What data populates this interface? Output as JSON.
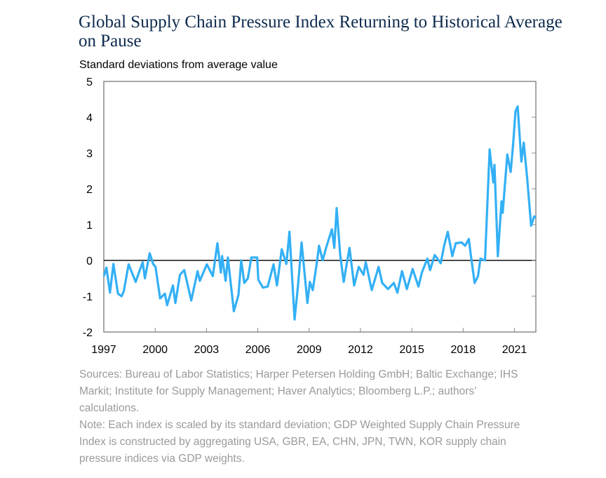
{
  "chart_data": {
    "type": "line",
    "title": "Global Supply Chain Pressure Index Returning to Historical Average on Pause",
    "ylabel": "Standard deviations from average value",
    "xlabel": "",
    "xlim": [
      1997,
      2022.25
    ],
    "ylim": [
      -2,
      5
    ],
    "x_ticks": [
      1997,
      2000,
      2003,
      2006,
      2009,
      2012,
      2015,
      2018,
      2021
    ],
    "x_tick_labels": [
      "1997",
      "2000",
      "2003",
      "2006",
      "2009",
      "2012",
      "2015",
      "2018",
      "2021"
    ],
    "y_ticks": [
      -2,
      -1,
      0,
      1,
      2,
      3,
      4,
      5
    ],
    "y_tick_labels": [
      "-2",
      "-1",
      "0",
      "1",
      "2",
      "3",
      "4",
      "5"
    ],
    "grid": false,
    "zero_line": true,
    "series": [
      {
        "name": "Global Supply Chain Pressure Index",
        "color": "#33b0f5",
        "points": [
          [
            1997.01,
            -0.44
          ],
          [
            1997.15,
            -0.2
          ],
          [
            1997.36,
            -0.9
          ],
          [
            1997.56,
            -0.1
          ],
          [
            1997.83,
            -0.93
          ],
          [
            1998.04,
            -1.0
          ],
          [
            1998.17,
            -0.86
          ],
          [
            1998.45,
            -0.11
          ],
          [
            1998.86,
            -0.6
          ],
          [
            1999.27,
            -0.05
          ],
          [
            1999.4,
            -0.5
          ],
          [
            1999.68,
            0.2
          ],
          [
            1999.88,
            -0.1
          ],
          [
            2000.02,
            -0.18
          ],
          [
            2000.29,
            -1.06
          ],
          [
            2000.57,
            -0.93
          ],
          [
            2000.7,
            -1.25
          ],
          [
            2001.04,
            -0.7
          ],
          [
            2001.18,
            -1.19
          ],
          [
            2001.45,
            -0.4
          ],
          [
            2001.7,
            -0.27
          ],
          [
            2002.11,
            -1.12
          ],
          [
            2002.48,
            -0.3
          ],
          [
            2002.61,
            -0.57
          ],
          [
            2003.02,
            -0.11
          ],
          [
            2003.37,
            -0.44
          ],
          [
            2003.64,
            0.48
          ],
          [
            2003.84,
            -0.34
          ],
          [
            2003.91,
            0.12
          ],
          [
            2004.12,
            -0.57
          ],
          [
            2004.25,
            0.08
          ],
          [
            2004.6,
            -1.42
          ],
          [
            2004.87,
            -0.96
          ],
          [
            2005.03,
            0.0
          ],
          [
            2005.21,
            -0.63
          ],
          [
            2005.42,
            -0.5
          ],
          [
            2005.62,
            0.08
          ],
          [
            2005.96,
            0.08
          ],
          [
            2006.03,
            -0.54
          ],
          [
            2006.3,
            -0.76
          ],
          [
            2006.58,
            -0.73
          ],
          [
            2006.92,
            -0.11
          ],
          [
            2007.12,
            -0.7
          ],
          [
            2007.4,
            0.31
          ],
          [
            2007.67,
            -0.1
          ],
          [
            2007.85,
            0.8
          ],
          [
            2008.15,
            -1.65
          ],
          [
            2008.35,
            -0.7
          ],
          [
            2008.56,
            0.5
          ],
          [
            2008.9,
            -1.19
          ],
          [
            2009.04,
            -0.6
          ],
          [
            2009.21,
            -0.83
          ],
          [
            2009.44,
            -0.1
          ],
          [
            2009.58,
            0.41
          ],
          [
            2009.79,
            0.0
          ],
          [
            2009.99,
            0.35
          ],
          [
            2010.33,
            0.87
          ],
          [
            2010.47,
            0.35
          ],
          [
            2010.61,
            1.46
          ],
          [
            2010.81,
            0.18
          ],
          [
            2011.02,
            -0.6
          ],
          [
            2011.36,
            0.35
          ],
          [
            2011.63,
            -0.7
          ],
          [
            2011.9,
            -0.18
          ],
          [
            2012.18,
            -0.4
          ],
          [
            2012.31,
            -0.05
          ],
          [
            2012.66,
            -0.83
          ],
          [
            2013.06,
            -0.18
          ],
          [
            2013.27,
            -0.63
          ],
          [
            2013.61,
            -0.8
          ],
          [
            2013.95,
            -0.63
          ],
          [
            2014.16,
            -0.9
          ],
          [
            2014.43,
            -0.3
          ],
          [
            2014.71,
            -0.8
          ],
          [
            2015.05,
            -0.24
          ],
          [
            2015.39,
            -0.73
          ],
          [
            2015.59,
            -0.34
          ],
          [
            2015.91,
            0.05
          ],
          [
            2016.07,
            -0.27
          ],
          [
            2016.34,
            0.15
          ],
          [
            2016.69,
            -0.08
          ],
          [
            2016.89,
            0.41
          ],
          [
            2017.1,
            0.8
          ],
          [
            2017.37,
            0.12
          ],
          [
            2017.57,
            0.48
          ],
          [
            2017.91,
            0.5
          ],
          [
            2018.12,
            0.41
          ],
          [
            2018.33,
            0.6
          ],
          [
            2018.46,
            0.12
          ],
          [
            2018.67,
            -0.63
          ],
          [
            2018.87,
            -0.44
          ],
          [
            2019.01,
            0.05
          ],
          [
            2019.28,
            0.0
          ],
          [
            2019.55,
            3.1
          ],
          [
            2019.76,
            2.18
          ],
          [
            2019.83,
            2.67
          ],
          [
            2020.03,
            0.12
          ],
          [
            2020.24,
            1.65
          ],
          [
            2020.31,
            1.33
          ],
          [
            2020.58,
            2.96
          ],
          [
            2020.78,
            2.47
          ],
          [
            2020.92,
            3.25
          ],
          [
            2021.06,
            4.17
          ],
          [
            2021.19,
            4.3
          ],
          [
            2021.4,
            2.76
          ],
          [
            2021.54,
            3.29
          ],
          [
            2021.74,
            2.3
          ],
          [
            2021.97,
            0.97
          ],
          [
            2022.15,
            1.23
          ],
          [
            2022.25,
            1.2
          ]
        ]
      }
    ]
  },
  "notes": {
    "sources": "Sources: Bureau of Labor Statistics; Harper Petersen Holding GmbH; Baltic Exchange; IHS Markit; Institute for Supply Management; Haver Analytics; Bloomberg L.P.; authors’ calculations.",
    "note": "Note: Each index is scaled by its standard deviation; GDP Weighted Supply Chain Pressure Index is constructed by aggregating USA, GBR, EA, CHN, JPN, TWN, KOR supply chain pressure indices via GDP weights."
  }
}
